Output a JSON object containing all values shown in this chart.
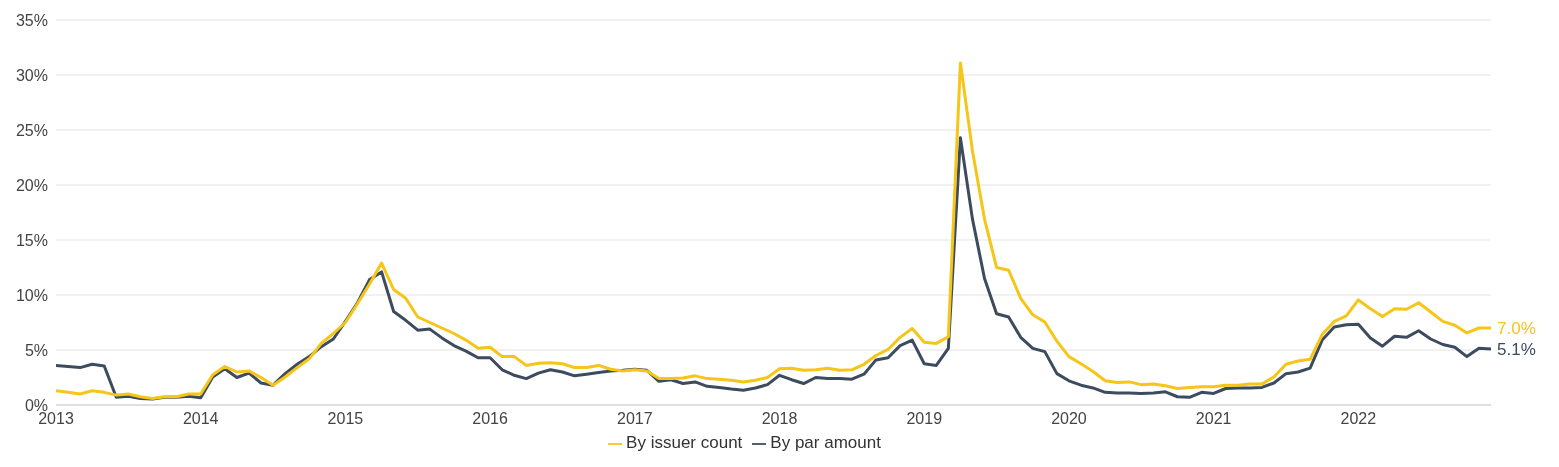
{
  "chart_data": {
    "type": "line",
    "x": [
      "2013-01",
      "2013-02",
      "2013-03",
      "2013-04",
      "2013-05",
      "2013-06",
      "2013-07",
      "2013-08",
      "2013-09",
      "2013-10",
      "2013-11",
      "2013-12",
      "2014-01",
      "2014-02",
      "2014-03",
      "2014-04",
      "2014-05",
      "2014-06",
      "2014-07",
      "2014-08",
      "2014-09",
      "2014-10",
      "2014-11",
      "2014-12",
      "2015-01",
      "2015-02",
      "2015-03",
      "2015-04",
      "2015-05",
      "2015-06",
      "2015-07",
      "2015-08",
      "2015-09",
      "2015-10",
      "2015-11",
      "2015-12",
      "2016-01",
      "2016-02",
      "2016-03",
      "2016-04",
      "2016-05",
      "2016-06",
      "2016-07",
      "2016-08",
      "2016-09",
      "2016-10",
      "2016-11",
      "2016-12",
      "2017-01",
      "2017-02",
      "2017-03",
      "2017-04",
      "2017-05",
      "2017-06",
      "2017-07",
      "2017-08",
      "2017-09",
      "2017-10",
      "2017-11",
      "2017-12",
      "2018-01",
      "2018-02",
      "2018-03",
      "2018-04",
      "2018-05",
      "2018-06",
      "2018-07",
      "2018-08",
      "2018-09",
      "2018-10",
      "2018-11",
      "2018-12",
      "2019-01",
      "2019-02",
      "2019-03",
      "2019-04",
      "2019-05",
      "2019-06",
      "2019-07",
      "2019-08",
      "2019-09",
      "2019-10",
      "2019-11",
      "2019-12",
      "2020-01",
      "2020-02",
      "2020-03",
      "2020-04",
      "2020-05",
      "2020-06",
      "2020-07",
      "2020-08",
      "2020-09",
      "2020-10",
      "2020-11",
      "2020-12",
      "2021-01",
      "2021-02",
      "2021-03",
      "2021-04",
      "2021-05",
      "2021-06",
      "2021-07",
      "2021-08",
      "2021-09",
      "2021-10",
      "2021-11",
      "2021-12",
      "2022-01",
      "2022-02",
      "2022-03",
      "2022-04",
      "2022-05",
      "2022-06",
      "2022-07",
      "2022-08",
      "2022-09",
      "2022-10",
      "2022-11",
      "2022-12"
    ],
    "series": [
      {
        "name": "By par amount",
        "color": "#3d4b5f",
        "values": [
          3.6,
          3.5,
          3.4,
          3.7,
          3.55,
          0.7,
          0.8,
          0.6,
          0.55,
          0.7,
          0.7,
          0.8,
          0.65,
          2.55,
          3.3,
          2.5,
          2.9,
          2.0,
          1.8,
          2.85,
          3.7,
          4.4,
          5.3,
          6.0,
          7.6,
          9.3,
          11.4,
          12.1,
          8.5,
          7.7,
          6.8,
          6.9,
          6.1,
          5.4,
          4.9,
          4.3,
          4.3,
          3.2,
          2.7,
          2.4,
          2.9,
          3.2,
          3.0,
          2.65,
          2.8,
          2.95,
          3.1,
          3.15,
          3.25,
          3.15,
          2.15,
          2.3,
          1.95,
          2.1,
          1.7,
          1.6,
          1.45,
          1.35,
          1.55,
          1.85,
          2.7,
          2.3,
          1.95,
          2.5,
          2.4,
          2.4,
          2.35,
          2.8,
          4.1,
          4.3,
          5.4,
          5.9,
          3.75,
          3.6,
          5.15,
          24.3,
          16.9,
          11.5,
          8.3,
          8.0,
          6.15,
          5.15,
          4.85,
          2.85,
          2.2,
          1.8,
          1.55,
          1.15,
          1.1,
          1.1,
          1.05,
          1.1,
          1.2,
          0.75,
          0.7,
          1.15,
          1.05,
          1.5,
          1.55,
          1.55,
          1.6,
          2.0,
          2.85,
          3.0,
          3.35,
          5.9,
          7.1,
          7.3,
          7.35,
          6.1,
          5.35,
          6.25,
          6.15,
          6.75,
          6.0,
          5.5,
          5.25,
          4.4,
          5.15,
          5.1
        ]
      },
      {
        "name": "By issuer count",
        "color": "#f5c518",
        "values": [
          1.3,
          1.15,
          1.0,
          1.3,
          1.15,
          0.9,
          1.0,
          0.75,
          0.6,
          0.75,
          0.75,
          1.0,
          1.0,
          2.75,
          3.5,
          3.0,
          3.1,
          2.5,
          1.8,
          2.55,
          3.4,
          4.2,
          5.6,
          6.5,
          7.5,
          9.2,
          11.0,
          12.9,
          10.5,
          9.7,
          8.0,
          7.5,
          7.0,
          6.5,
          5.9,
          5.15,
          5.25,
          4.4,
          4.4,
          3.6,
          3.8,
          3.85,
          3.75,
          3.4,
          3.4,
          3.6,
          3.25,
          3.1,
          3.2,
          3.1,
          2.4,
          2.4,
          2.45,
          2.65,
          2.4,
          2.35,
          2.25,
          2.1,
          2.25,
          2.5,
          3.3,
          3.35,
          3.15,
          3.2,
          3.35,
          3.15,
          3.2,
          3.7,
          4.5,
          5.05,
          6.15,
          6.95,
          5.7,
          5.6,
          6.2,
          31.1,
          23.1,
          16.9,
          12.5,
          12.25,
          9.7,
          8.2,
          7.55,
          5.8,
          4.4,
          3.75,
          3.05,
          2.2,
          2.05,
          2.1,
          1.85,
          1.9,
          1.75,
          1.5,
          1.6,
          1.65,
          1.65,
          1.8,
          1.8,
          1.9,
          1.9,
          2.55,
          3.7,
          4.0,
          4.15,
          6.4,
          7.6,
          8.1,
          9.55,
          8.75,
          8.05,
          8.75,
          8.7,
          9.3,
          8.45,
          7.6,
          7.25,
          6.55,
          7.0,
          7.0
        ]
      }
    ],
    "xlim": [
      "2013-01",
      "2022-12"
    ],
    "xticks": [
      "2013",
      "2014",
      "2015",
      "2016",
      "2017",
      "2018",
      "2019",
      "2020",
      "2021",
      "2022"
    ],
    "ylim": [
      0,
      35
    ],
    "yticks": [
      {
        "value": 0,
        "label": "0%"
      },
      {
        "value": 5,
        "label": "5%"
      },
      {
        "value": 10,
        "label": "10%"
      },
      {
        "value": 15,
        "label": "15%"
      },
      {
        "value": 20,
        "label": "20%"
      },
      {
        "value": 25,
        "label": "25%"
      },
      {
        "value": 30,
        "label": "30%"
      },
      {
        "value": 35,
        "label": "35%"
      }
    ],
    "annotations": [
      {
        "text": "7.0%",
        "x": "2022-12",
        "y": 7.0
      },
      {
        "text": "5.1%",
        "x": "2022-12",
        "y": 5.1
      }
    ],
    "grid": "y",
    "legend": "bottom",
    "marker": "none",
    "line_style": "solid"
  }
}
